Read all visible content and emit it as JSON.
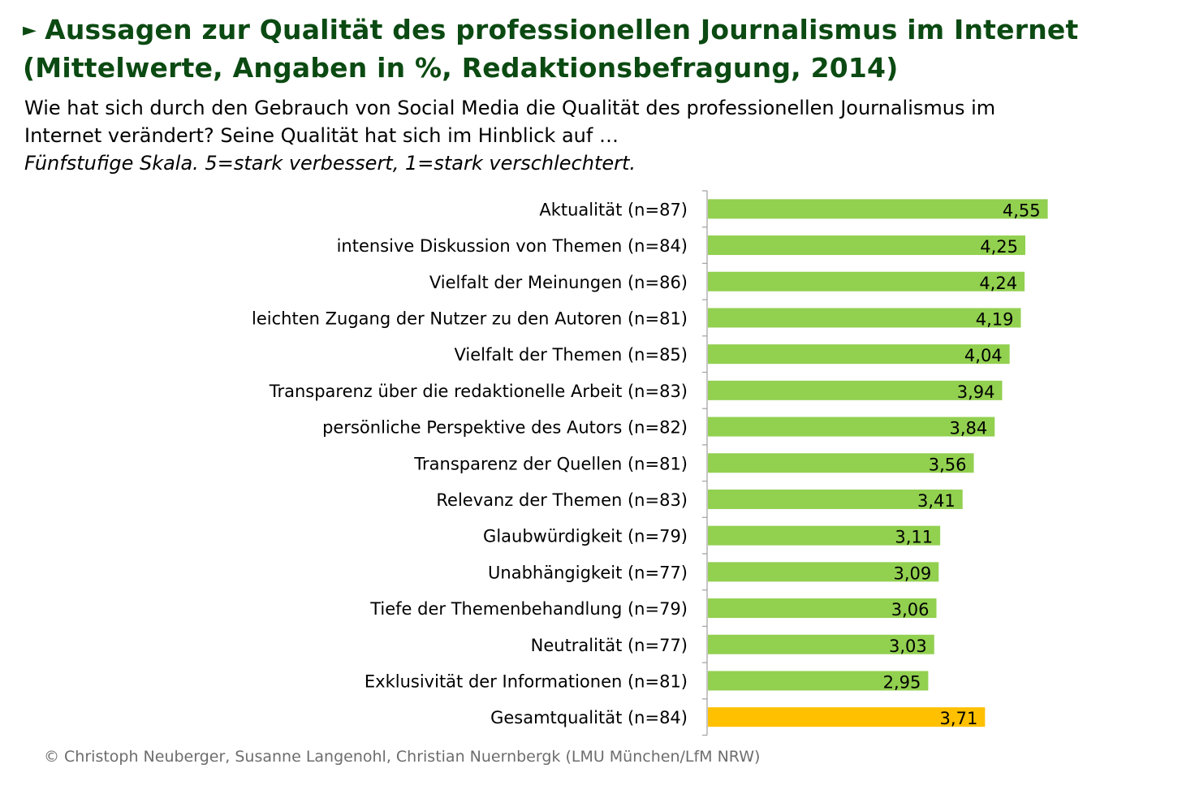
{
  "title": {
    "line1": "Aussagen zur Qualität des professionellen Journalismus im Internet",
    "line2": "(Mittelwerte, Angaben in %, Redaktionsbefragung, 2014)",
    "arrow_icon": "triangle-right-icon"
  },
  "subtitle": {
    "line1": "Wie hat sich durch den Gebrauch von Social Media die Qualität des professionellen Journalismus im",
    "line2": "Internet verändert? Seine Qualität hat sich im Hinblick auf …",
    "line3": "Fünfstufige Skala. 5=stark verbessert, 1=stark verschlechtert."
  },
  "footer": "© Christoph Neuberger, Susanne Langenohl, Christian Nuernbergk (LMU München/LfM NRW)",
  "colors": {
    "title": "#0b4a12",
    "bar": "#92d050",
    "bar_total": "#ffc000",
    "axis": "#a6a6a6"
  },
  "chart_data": {
    "type": "bar",
    "orientation": "horizontal",
    "categories": [
      "Aktualität (n=87)",
      "intensive Diskussion von Themen (n=84)",
      "Vielfalt der Meinungen (n=86)",
      "leichten Zugang der Nutzer zu den Autoren (n=81)",
      "Vielfalt der Themen (n=85)",
      "Transparenz über die redaktionelle Arbeit (n=83) ",
      "persönliche Perspektive des Autors (n=82)",
      "Transparenz der Quellen (n=81)",
      "Relevanz der Themen (n=83)",
      "Glaubwürdigkeit (n=79)",
      "Unabhängigkeit (n=77)",
      "Tiefe der Themenbehandlung (n=79)",
      "Neutralität (n=77)",
      "Exklusivität der Informationen (n=81)",
      "Gesamtqualität (n=84)"
    ],
    "values": [
      4.55,
      4.25,
      4.24,
      4.19,
      4.04,
      3.94,
      3.84,
      3.56,
      3.41,
      3.11,
      3.09,
      3.06,
      3.03,
      2.95,
      3.71
    ],
    "value_labels": [
      "4,55",
      "4,25",
      "4,24",
      "4,19",
      "4,04",
      "3,94",
      "3,84",
      "3,56",
      "3,41",
      "3,11",
      "3,09",
      "3,06",
      "3,03",
      "2,95",
      "3,71"
    ],
    "highlight_category": "Gesamtqualität (n=84)",
    "xlim": [
      0,
      5
    ],
    "grid": false,
    "legend": "none"
  }
}
